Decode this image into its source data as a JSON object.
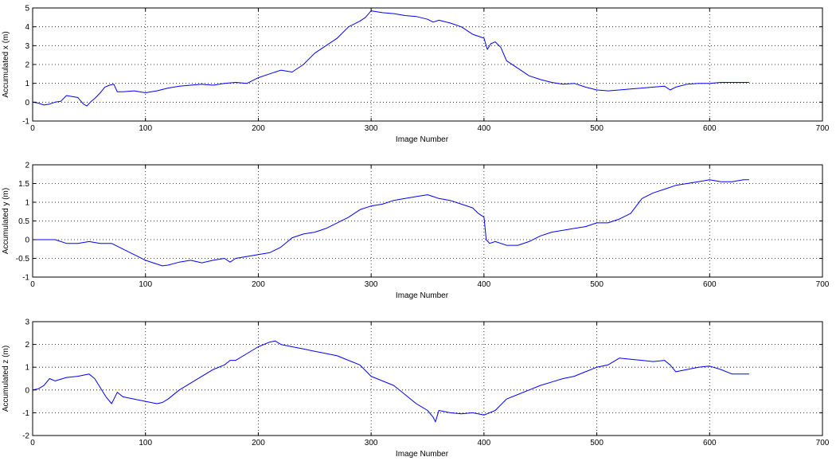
{
  "chart_data": [
    {
      "type": "line",
      "xlabel": "Image Number",
      "ylabel": "Accumulated x (m)",
      "xlim": [
        0,
        700
      ],
      "ylim": [
        -1,
        5
      ],
      "xticks": [
        0,
        100,
        200,
        300,
        400,
        500,
        600,
        700
      ],
      "yticks": [
        -1,
        0,
        1,
        2,
        3,
        4,
        5
      ],
      "grid": true,
      "series": [
        {
          "color": "#0000ff",
          "x": [
            0,
            5,
            10,
            15,
            20,
            25,
            30,
            35,
            40,
            45,
            48,
            52,
            56,
            60,
            64,
            68,
            72,
            75,
            80,
            90,
            100,
            110,
            120,
            130,
            140,
            150,
            160,
            170,
            180,
            190,
            200,
            210,
            220,
            230,
            240,
            250,
            260,
            270,
            280,
            290,
            295,
            300,
            305,
            310,
            320,
            330,
            340,
            350,
            355,
            360,
            370,
            380,
            390,
            395,
            400,
            403,
            406,
            410,
            415,
            420,
            430,
            440,
            450,
            460,
            470,
            480,
            490,
            500,
            510,
            520,
            530,
            540,
            550,
            560,
            565,
            570,
            580,
            590,
            600,
            610,
            620,
            630,
            635
          ],
          "y": [
            0.0,
            -0.05,
            -0.15,
            -0.1,
            0.0,
            0.05,
            0.35,
            0.3,
            0.25,
            -0.1,
            -0.2,
            0.05,
            0.25,
            0.5,
            0.8,
            0.9,
            0.95,
            0.55,
            0.55,
            0.6,
            0.5,
            0.6,
            0.75,
            0.85,
            0.9,
            0.95,
            0.9,
            1.0,
            1.05,
            1.0,
            1.3,
            1.5,
            1.7,
            1.6,
            2.0,
            2.6,
            3.0,
            3.4,
            4.0,
            4.3,
            4.5,
            4.85,
            4.8,
            4.75,
            4.7,
            4.6,
            4.55,
            4.4,
            4.25,
            4.35,
            4.2,
            4.0,
            3.6,
            3.5,
            3.4,
            2.8,
            3.1,
            3.2,
            2.9,
            2.2,
            1.8,
            1.4,
            1.2,
            1.05,
            0.95,
            1.0,
            0.8,
            0.65,
            0.6,
            0.65,
            0.7,
            0.75,
            0.8,
            0.85,
            0.65,
            0.8,
            0.95,
            1.0,
            1.0,
            1.05,
            1.05,
            1.05,
            1.05
          ]
        }
      ]
    },
    {
      "type": "line",
      "xlabel": "Image Number",
      "ylabel": "Accumulated y (m)",
      "xlim": [
        0,
        700
      ],
      "ylim": [
        -1,
        2
      ],
      "xticks": [
        0,
        100,
        200,
        300,
        400,
        500,
        600,
        700
      ],
      "yticks": [
        -1,
        -0.5,
        0,
        0.5,
        1,
        1.5,
        2
      ],
      "grid": true,
      "series": [
        {
          "color": "#0000ff",
          "x": [
            0,
            10,
            20,
            30,
            40,
            50,
            60,
            70,
            80,
            90,
            100,
            110,
            115,
            120,
            130,
            140,
            150,
            160,
            170,
            175,
            180,
            190,
            200,
            210,
            220,
            230,
            240,
            250,
            260,
            270,
            280,
            290,
            300,
            310,
            320,
            330,
            340,
            350,
            355,
            360,
            370,
            380,
            390,
            395,
            400,
            402,
            405,
            410,
            420,
            430,
            440,
            450,
            460,
            470,
            480,
            490,
            500,
            510,
            520,
            530,
            540,
            550,
            560,
            570,
            580,
            590,
            600,
            610,
            620,
            630,
            635
          ],
          "y": [
            0.0,
            0.0,
            0.0,
            -0.1,
            -0.1,
            -0.05,
            -0.1,
            -0.1,
            -0.25,
            -0.4,
            -0.55,
            -0.65,
            -0.7,
            -0.68,
            -0.6,
            -0.55,
            -0.62,
            -0.55,
            -0.5,
            -0.6,
            -0.5,
            -0.45,
            -0.4,
            -0.35,
            -0.2,
            0.05,
            0.15,
            0.2,
            0.3,
            0.45,
            0.6,
            0.8,
            0.9,
            0.95,
            1.05,
            1.1,
            1.15,
            1.2,
            1.15,
            1.1,
            1.05,
            0.95,
            0.85,
            0.7,
            0.6,
            0.0,
            -0.1,
            -0.05,
            -0.15,
            -0.15,
            -0.05,
            0.1,
            0.2,
            0.25,
            0.3,
            0.35,
            0.45,
            0.45,
            0.55,
            0.7,
            1.1,
            1.25,
            1.35,
            1.45,
            1.5,
            1.55,
            1.6,
            1.55,
            1.55,
            1.6,
            1.6
          ]
        }
      ]
    },
    {
      "type": "line",
      "xlabel": "Image Number",
      "ylabel": "Accumulated z (m)",
      "xlim": [
        0,
        700
      ],
      "ylim": [
        -2,
        3
      ],
      "xticks": [
        0,
        100,
        200,
        300,
        400,
        500,
        600,
        700
      ],
      "yticks": [
        -2,
        -1,
        0,
        1,
        2,
        3
      ],
      "grid": true,
      "series": [
        {
          "color": "#0000ff",
          "x": [
            0,
            5,
            10,
            15,
            20,
            30,
            40,
            50,
            55,
            60,
            65,
            70,
            75,
            80,
            90,
            100,
            110,
            115,
            120,
            130,
            140,
            150,
            160,
            170,
            175,
            180,
            190,
            200,
            210,
            215,
            220,
            230,
            240,
            250,
            260,
            270,
            280,
            290,
            300,
            310,
            320,
            330,
            340,
            350,
            355,
            357,
            360,
            370,
            380,
            390,
            400,
            410,
            420,
            430,
            440,
            450,
            460,
            470,
            480,
            490,
            500,
            510,
            520,
            530,
            540,
            550,
            560,
            565,
            570,
            580,
            590,
            600,
            610,
            620,
            630,
            635
          ],
          "y": [
            0.0,
            0.05,
            0.2,
            0.5,
            0.4,
            0.55,
            0.6,
            0.7,
            0.5,
            0.1,
            -0.3,
            -0.6,
            -0.1,
            -0.3,
            -0.4,
            -0.5,
            -0.6,
            -0.55,
            -0.4,
            0.0,
            0.3,
            0.6,
            0.9,
            1.1,
            1.3,
            1.3,
            1.6,
            1.9,
            2.1,
            2.15,
            2.0,
            1.9,
            1.8,
            1.7,
            1.6,
            1.5,
            1.3,
            1.1,
            0.6,
            0.4,
            0.2,
            -0.2,
            -0.6,
            -0.9,
            -1.2,
            -1.4,
            -0.9,
            -1.0,
            -1.05,
            -1.0,
            -1.1,
            -0.9,
            -0.4,
            -0.2,
            0.0,
            0.2,
            0.35,
            0.5,
            0.6,
            0.8,
            1.0,
            1.1,
            1.4,
            1.35,
            1.3,
            1.25,
            1.3,
            1.1,
            0.8,
            0.9,
            1.0,
            1.05,
            0.9,
            0.7,
            0.7,
            0.7
          ]
        }
      ]
    }
  ]
}
